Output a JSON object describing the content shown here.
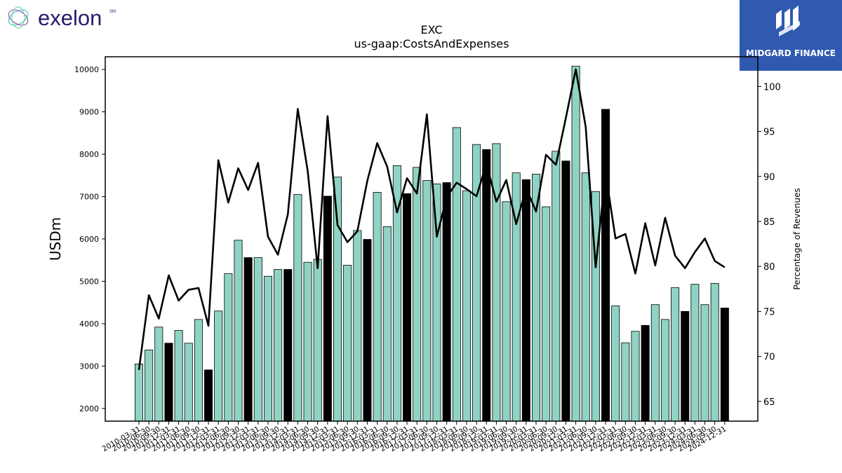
{
  "branding": {
    "left_logo_text": "exelon",
    "left_logo_mark": "SM",
    "right_logo_text": "MIDGARD FINANCE",
    "right_logo_bg": "#2f5ab0"
  },
  "colors": {
    "bar_teal": "#8ed3c4",
    "bar_black": "#000000",
    "line": "#000000",
    "exelon_text": "#2a1a6b"
  },
  "chart_data": {
    "type": "bar",
    "title": "EXC",
    "subtitle": "us-gaap:CostsAndExpenses",
    "ylabel": "USDm",
    "y2label": "Percentage of Revenues",
    "ylim": [
      1700,
      10300
    ],
    "y2lim": [
      62.8,
      103.3
    ],
    "yticks": [
      2000,
      3000,
      4000,
      5000,
      6000,
      7000,
      8000,
      9000,
      10000
    ],
    "y2ticks": [
      65,
      70,
      75,
      80,
      85,
      90,
      95,
      100
    ],
    "categories": [
      "2010-03-31",
      "2010-06-30",
      "2010-09-30",
      "2010-12-31",
      "2011-03-31",
      "2011-06-30",
      "2011-09-30",
      "2011-12-31",
      "2012-03-31",
      "2012-06-30",
      "2012-09-30",
      "2012-12-31",
      "2013-03-31",
      "2013-06-30",
      "2013-09-30",
      "2013-12-31",
      "2014-03-31",
      "2014-06-30",
      "2014-09-30",
      "2014-12-31",
      "2015-03-31",
      "2015-06-30",
      "2015-09-30",
      "2015-12-31",
      "2016-03-31",
      "2016-06-30",
      "2016-09-30",
      "2016-12-31",
      "2017-03-31",
      "2017-06-30",
      "2017-09-30",
      "2017-12-31",
      "2018-03-31",
      "2018-06-30",
      "2018-09-30",
      "2018-12-31",
      "2019-03-31",
      "2019-06-30",
      "2019-09-30",
      "2019-12-31",
      "2020-03-31",
      "2020-06-30",
      "2020-09-30",
      "2020-12-31",
      "2021-03-31",
      "2021-06-30",
      "2021-09-30",
      "2021-12-31",
      "2022-03-31",
      "2022-06-30",
      "2022-09-30",
      "2022-12-31",
      "2023-03-31",
      "2023-06-30",
      "2023-09-30",
      "2023-12-31",
      "2024-03-31",
      "2024-06-30",
      "2024-09-30",
      "2024-12-31"
    ],
    "series": [
      {
        "kind": "bar",
        "values": [
          3050,
          3380,
          3920,
          3540,
          3840,
          3540,
          4100,
          2910,
          4300,
          5180,
          5970,
          5560,
          5560,
          5120,
          5280,
          5280,
          7050,
          5450,
          5520,
          7010,
          7460,
          5380,
          6200,
          5990,
          7100,
          6290,
          7730,
          7070,
          7690,
          7380,
          7300,
          7330,
          8630,
          7140,
          8230,
          8110,
          8250,
          6880,
          7560,
          7400,
          7530,
          6760,
          8070,
          7840,
          10080,
          7560,
          7120,
          9060,
          4420,
          3550,
          3820,
          3960,
          4450,
          4100,
          4850,
          4290,
          4930,
          4450,
          4950,
          4370
        ],
        "highlight": [
          false,
          false,
          false,
          true,
          false,
          false,
          false,
          true,
          false,
          false,
          false,
          true,
          false,
          false,
          false,
          true,
          false,
          false,
          false,
          true,
          false,
          false,
          false,
          true,
          false,
          false,
          false,
          true,
          false,
          false,
          false,
          true,
          false,
          false,
          false,
          true,
          false,
          false,
          false,
          true,
          false,
          false,
          false,
          true,
          false,
          false,
          false,
          true,
          false,
          false,
          false,
          true,
          false,
          false,
          false,
          true,
          false,
          false,
          false,
          true
        ]
      },
      {
        "kind": "line",
        "axis": "right",
        "values": [
          68.5,
          76.8,
          74.2,
          79.0,
          76.2,
          77.4,
          77.6,
          73.4,
          91.8,
          87.1,
          90.9,
          88.5,
          91.5,
          83.3,
          81.3,
          85.8,
          97.5,
          90.6,
          79.8,
          96.7,
          84.6,
          82.7,
          83.9,
          89.5,
          93.7,
          91.1,
          86.0,
          89.8,
          88.1,
          96.9,
          83.3,
          87.7,
          89.3,
          88.6,
          87.8,
          91.4,
          87.2,
          89.6,
          84.7,
          88.7,
          86.1,
          92.4,
          91.3,
          96.5,
          101.9,
          95.5,
          79.9,
          90.4,
          83.1,
          83.6,
          79.2,
          84.8,
          80.1,
          85.4,
          81.2,
          79.8,
          81.6,
          83.1,
          80.6,
          79.9
        ]
      }
    ],
    "grid": false
  }
}
